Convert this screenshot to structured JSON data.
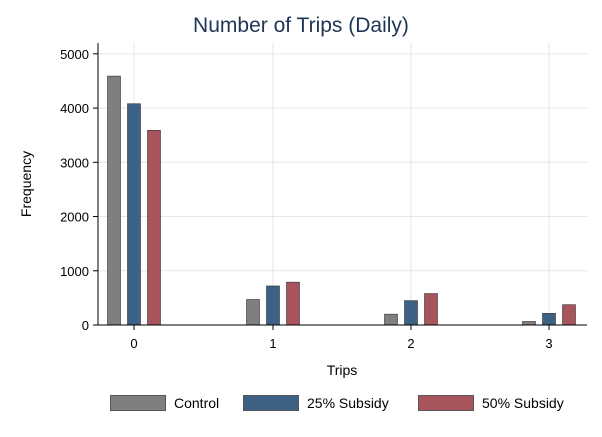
{
  "chart_data": {
    "type": "bar",
    "title": "Number of Trips (Daily)",
    "xlabel": "Trips",
    "ylabel": "Frequency",
    "categories": [
      "0",
      "1",
      "2",
      "3"
    ],
    "ylim": [
      0,
      5200
    ],
    "yticks": [
      "0",
      "1000",
      "2000",
      "3000",
      "4000",
      "5000"
    ],
    "grid": true,
    "legend": "bottom",
    "series": [
      {
        "name": "Control",
        "color": "#7f7f7f",
        "values": [
          4590,
          470,
          200,
          65
        ]
      },
      {
        "name": "25% Subsidy",
        "color": "#3d6185",
        "values": [
          4080,
          720,
          450,
          215
        ]
      },
      {
        "name": "50% Subsidy",
        "color": "#a8545c",
        "values": [
          3590,
          790,
          580,
          375
        ]
      }
    ]
  }
}
